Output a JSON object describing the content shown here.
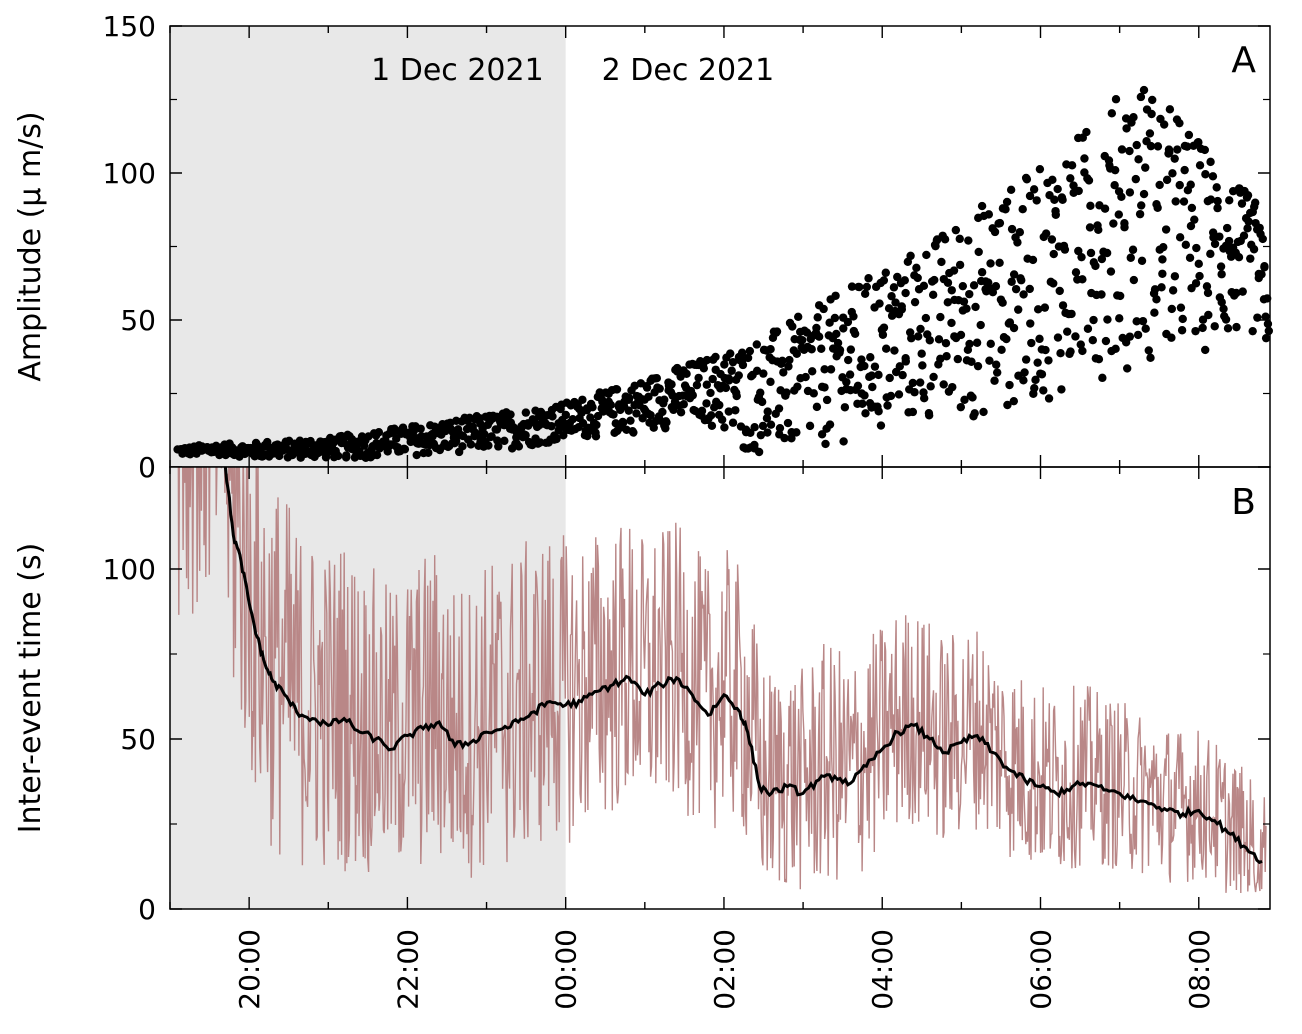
{
  "chart_data": [
    {
      "panel": "A",
      "type": "scatter",
      "ylabel": "Amplitude (µ m/s)",
      "ylim": [
        0,
        150
      ],
      "yticks": [
        0,
        50,
        100,
        150
      ],
      "xlim_hours": [
        19.0,
        9.0
      ],
      "annotations": [
        "1 Dec 2021",
        "2 Dec 2021"
      ],
      "panel_label": "A",
      "shaded_until_hour": 24,
      "shade_color": "#e8e8e8",
      "marker_color": "#000000",
      "series": [
        {
          "x_hours": [
            19.1,
            19.25,
            19.5,
            19.75,
            20.0,
            20.25,
            20.5,
            20.75,
            21.0,
            21.25,
            21.5,
            21.75,
            22.0,
            22.25,
            22.5,
            22.75,
            23.0,
            23.25,
            23.5,
            23.75,
            24.0,
            24.25,
            24.5,
            24.75,
            25.0,
            25.25,
            25.5,
            25.75,
            26.0,
            26.25,
            26.5,
            26.75,
            27.0,
            27.25,
            27.5,
            27.75,
            28.0,
            28.25,
            28.5,
            28.75,
            29.0,
            29.25,
            29.5,
            29.75,
            30.0,
            30.25,
            30.5,
            30.75,
            31.0,
            31.25,
            31.5,
            31.75,
            32.0,
            32.25,
            32.5,
            32.75,
            32.9
          ],
          "y_range_low": [
            4,
            4,
            4,
            4,
            3,
            3,
            3,
            3,
            3,
            3,
            3,
            4,
            4,
            4,
            5,
            5,
            6,
            6,
            7,
            8,
            9,
            10,
            10,
            11,
            12,
            13,
            14,
            15,
            10,
            4,
            4,
            4,
            5,
            6,
            8,
            10,
            10,
            12,
            14,
            15,
            15,
            16,
            18,
            20,
            22,
            24,
            28,
            30,
            32,
            34,
            35,
            36,
            38,
            40,
            42,
            45,
            36
          ],
          "y_range_high": [
            7,
            7,
            8,
            8,
            8,
            9,
            9,
            10,
            10,
            11,
            12,
            13,
            14,
            15,
            16,
            17,
            18,
            19,
            20,
            21,
            22,
            24,
            26,
            28,
            30,
            33,
            35,
            37,
            40,
            42,
            45,
            48,
            52,
            56,
            60,
            64,
            68,
            72,
            76,
            80,
            85,
            90,
            94,
            98,
            102,
            108,
            114,
            120,
            128,
            134,
            126,
            120,
            112,
            104,
            96,
            90,
            60
          ]
        }
      ]
    },
    {
      "panel": "B",
      "type": "line",
      "ylabel": "Inter-event time (s)",
      "ylim": [
        0,
        130
      ],
      "yticks": [
        0,
        50,
        100
      ],
      "xlabel": "",
      "xticks_hours": [
        20,
        22,
        24,
        26,
        28,
        30,
        32
      ],
      "xtick_labels": [
        "20:00",
        "22:00",
        "00:00",
        "02:00",
        "04:00",
        "06:00",
        "08:00"
      ],
      "panel_label": "B",
      "shaded_until_hour": 24,
      "shade_color": "#e8e8e8",
      "raw_color": "#b98787",
      "smooth_color": "#000000",
      "series": [
        {
          "name": "",
          "kind": "smoothed",
          "x_hours": [
            19.7,
            19.8,
            19.9,
            20.0,
            20.1,
            20.2,
            20.3,
            20.45,
            20.6,
            20.8,
            21.0,
            21.2,
            21.4,
            21.6,
            21.8,
            22.0,
            22.2,
            22.4,
            22.6,
            22.8,
            23.0,
            23.2,
            23.4,
            23.6,
            23.8,
            24.0,
            24.2,
            24.4,
            24.6,
            24.8,
            25.0,
            25.2,
            25.4,
            25.6,
            25.8,
            26.0,
            26.2,
            26.3,
            26.45,
            26.6,
            26.8,
            27.0,
            27.2,
            27.4,
            27.6,
            27.8,
            28.0,
            28.2,
            28.4,
            28.6,
            28.8,
            29.0,
            29.2,
            29.4,
            29.6,
            29.8,
            30.0,
            30.2,
            30.4,
            30.6,
            30.8,
            31.0,
            31.2,
            31.4,
            31.6,
            31.8,
            32.0,
            32.2,
            32.4,
            32.6,
            32.8
          ],
          "y": [
            130,
            110,
            102,
            90,
            80,
            72,
            67,
            63,
            58,
            56,
            54,
            56,
            52,
            50,
            47,
            51,
            53,
            55,
            48,
            49,
            52,
            53,
            55,
            58,
            61,
            60,
            61,
            64,
            66,
            68,
            63,
            66,
            68,
            63,
            57,
            63,
            58,
            52,
            36,
            34,
            36,
            34,
            38,
            39,
            37,
            42,
            47,
            52,
            54,
            50,
            46,
            49,
            51,
            46,
            41,
            38,
            36,
            34,
            36,
            37,
            35,
            34,
            32,
            31,
            29,
            28,
            29,
            26,
            22,
            18,
            14
          ]
        },
        {
          "name": "",
          "kind": "raw",
          "x_hours": [
            19.1,
            32.85
          ],
          "noise_amplitude": [
            60,
            20
          ]
        }
      ]
    }
  ]
}
